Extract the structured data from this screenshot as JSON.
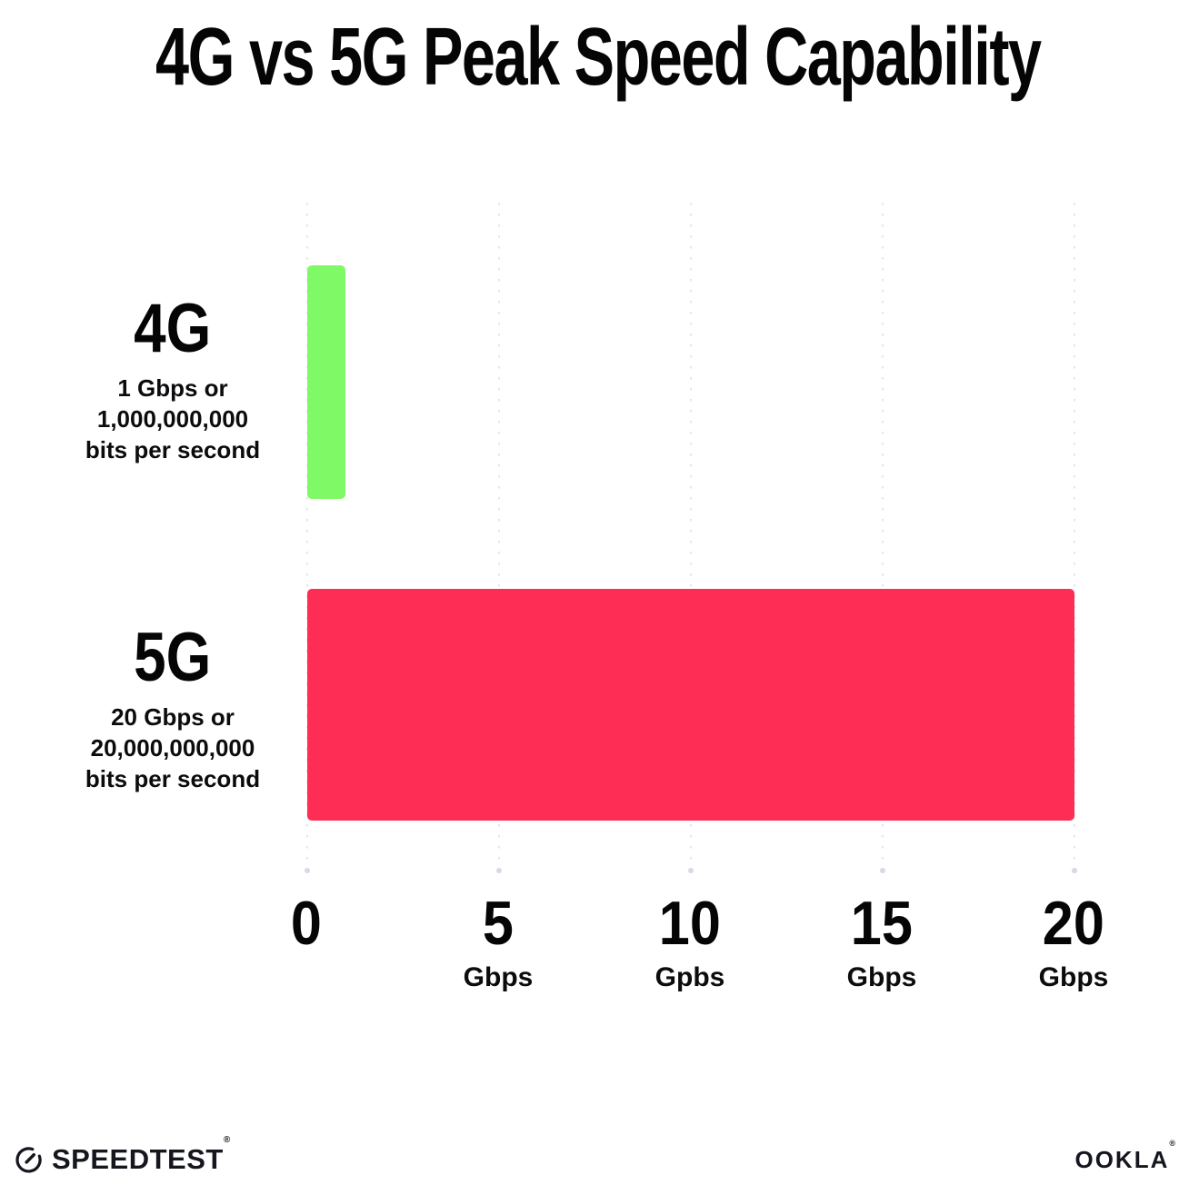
{
  "title": "4G vs 5G Peak Speed Capability",
  "chart_data": {
    "type": "bar",
    "orientation": "horizontal",
    "title": "4G vs 5G Peak Speed Capability",
    "categories": [
      "4G",
      "5G"
    ],
    "values": [
      1,
      20
    ],
    "value_unit": "Gbps",
    "xlim": [
      0,
      20
    ],
    "x_tick_interval": 5,
    "grid": "vertical dotted gridlines at 0, 5, 10, 15, 20 with end dots",
    "legend_position": "none",
    "series_colors": [
      "#80F966",
      "#FD2D55"
    ],
    "rows": [
      {
        "name": "4G",
        "value": 1,
        "desc_lines": [
          "1 Gbps or",
          "1,000,000,000",
          "bits per second"
        ]
      },
      {
        "name": "5G",
        "value": 20,
        "desc_lines": [
          "20 Gbps or",
          "20,000,000,000",
          "bits per second"
        ]
      }
    ],
    "x_axis": {
      "ticks": [
        {
          "value": "0",
          "unit": ""
        },
        {
          "value": "5",
          "unit": "Gbps"
        },
        {
          "value": "10",
          "unit": "Gpbs"
        },
        {
          "value": "15",
          "unit": "Gbps"
        },
        {
          "value": "20",
          "unit": "Gbps"
        }
      ]
    }
  },
  "footer": {
    "speedtest": {
      "label": "SPEEDTEST",
      "trademark": "®"
    },
    "ookla": {
      "label": "OOKLA",
      "trademark": "®"
    }
  },
  "colors": {
    "background": "#FFFFFF",
    "bar_4g": "#80F966",
    "bar_5g": "#FD2D55",
    "title_text": "#050505",
    "body_text": "#0C0C0E",
    "gridline": "#E5E5EE",
    "gridline_end_dot": "#D6DAE4",
    "footer_text": "#15161E"
  }
}
